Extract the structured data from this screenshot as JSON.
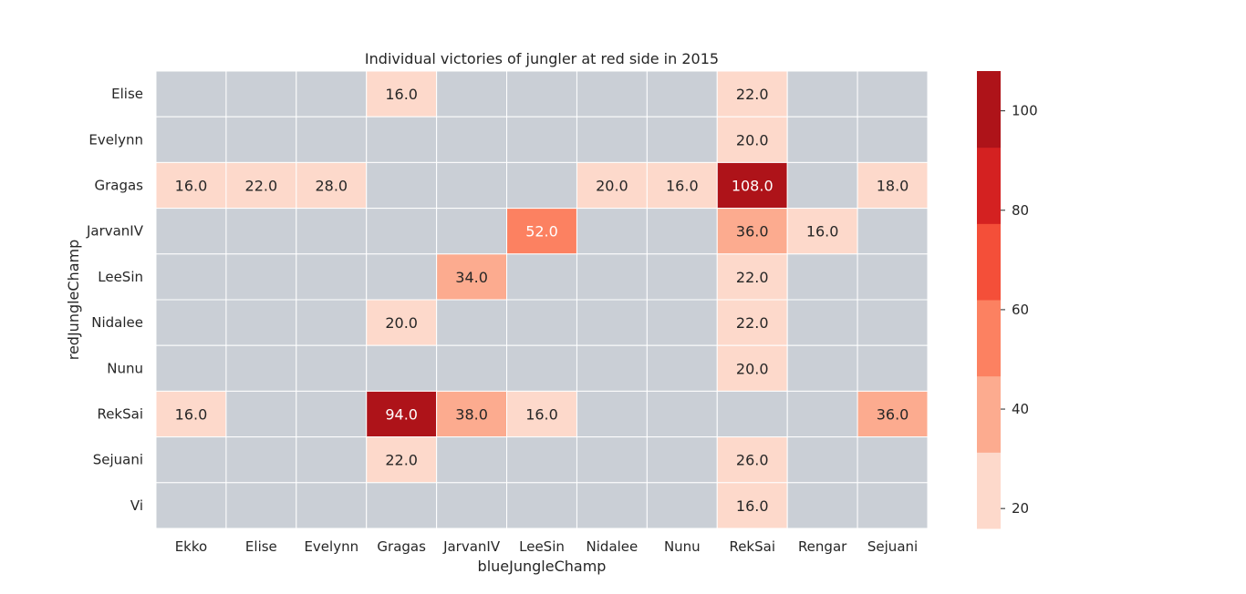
{
  "chart_data": {
    "type": "heatmap",
    "title": "Individual victories of jungler at red side in 2015",
    "xlabel": "blueJungleChamp",
    "ylabel": "redJungleChamp",
    "x_categories": [
      "Ekko",
      "Elise",
      "Evelynn",
      "Gragas",
      "JarvanIV",
      "LeeSin",
      "Nidalee",
      "Nunu",
      "RekSai",
      "Rengar",
      "Sejuani"
    ],
    "y_categories": [
      "Elise",
      "Evelynn",
      "Gragas",
      "JarvanIV",
      "LeeSin",
      "Nidalee",
      "Nunu",
      "RekSai",
      "Sejuani",
      "Vi"
    ],
    "values": [
      [
        null,
        null,
        null,
        16.0,
        null,
        null,
        null,
        null,
        22.0,
        null,
        null
      ],
      [
        null,
        null,
        null,
        null,
        null,
        null,
        null,
        null,
        20.0,
        null,
        null
      ],
      [
        16.0,
        22.0,
        28.0,
        null,
        null,
        null,
        20.0,
        16.0,
        108.0,
        null,
        18.0
      ],
      [
        null,
        null,
        null,
        null,
        null,
        52.0,
        null,
        null,
        36.0,
        16.0,
        null
      ],
      [
        null,
        null,
        null,
        null,
        34.0,
        null,
        null,
        null,
        22.0,
        null,
        null
      ],
      [
        null,
        null,
        null,
        20.0,
        null,
        null,
        null,
        null,
        22.0,
        null,
        null
      ],
      [
        null,
        null,
        null,
        null,
        null,
        null,
        null,
        null,
        20.0,
        null,
        null
      ],
      [
        16.0,
        null,
        null,
        94.0,
        38.0,
        16.0,
        null,
        null,
        null,
        null,
        36.0
      ],
      [
        null,
        null,
        null,
        22.0,
        null,
        null,
        null,
        null,
        26.0,
        null,
        null
      ],
      [
        null,
        null,
        null,
        null,
        null,
        null,
        null,
        null,
        16.0,
        null,
        null
      ]
    ],
    "value_format": "0.0",
    "missing_color": "#cacfd6",
    "colorbar": {
      "range": [
        16,
        108
      ],
      "ticks": [
        20,
        40,
        60,
        80,
        100
      ],
      "colors": [
        "#fdd9cb",
        "#fcab8f",
        "#fc8161",
        "#f44f39",
        "#d42121",
        "#ae1319"
      ]
    }
  }
}
